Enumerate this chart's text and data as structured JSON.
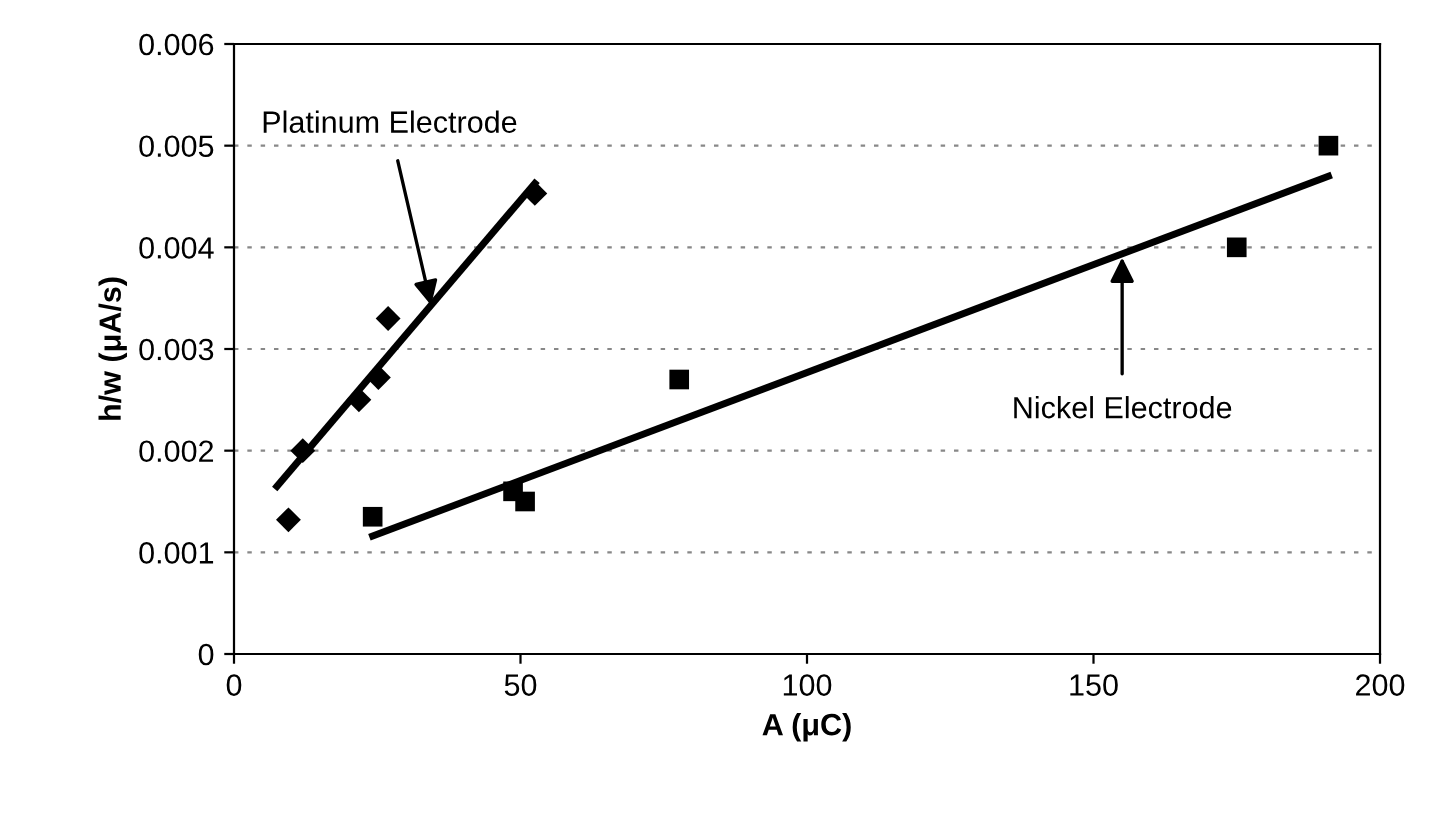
{
  "chart_data": {
    "type": "scatter",
    "xlabel": "A (μC)",
    "ylabel": "h/w (μA/s)",
    "xlim": [
      0,
      200
    ],
    "xticks": [
      0,
      50,
      100,
      150,
      200
    ],
    "ylim": [
      0,
      0.006
    ],
    "yticks": [
      0,
      0.001,
      0.002,
      0.003,
      0.004,
      0.005,
      0.006
    ],
    "grid": "y",
    "series": [
      {
        "marker": "diamond",
        "color": "#000000",
        "x": [
          9.5,
          12,
          21.8,
          25.2,
          26.9,
          52.5
        ],
        "values": [
          0.00132,
          0.002,
          0.0025,
          0.00272,
          0.0033,
          0.00453
        ]
      },
      {
        "type": "line",
        "marker": "none",
        "color": "#000000",
        "x": [
          7.5,
          52.5
        ],
        "values": [
          0.00165,
          0.00463
        ]
      },
      {
        "marker": "square",
        "color": "#000000",
        "x": [
          24.2,
          48.7,
          50.8,
          77.7,
          175,
          191
        ],
        "values": [
          0.00135,
          0.0016,
          0.0015,
          0.0027,
          0.004,
          0.005
        ]
      },
      {
        "type": "line",
        "marker": "none",
        "color": "#000000",
        "x": [
          24.2,
          191
        ],
        "values": [
          0.00116,
          0.0047
        ]
      }
    ],
    "annotations": [
      {
        "text": "Platinum Electrode",
        "x": 34.4,
        "y": 0.00343
      },
      {
        "text": "Nickel Electrode",
        "x": 155,
        "y": 0.0039
      }
    ]
  }
}
